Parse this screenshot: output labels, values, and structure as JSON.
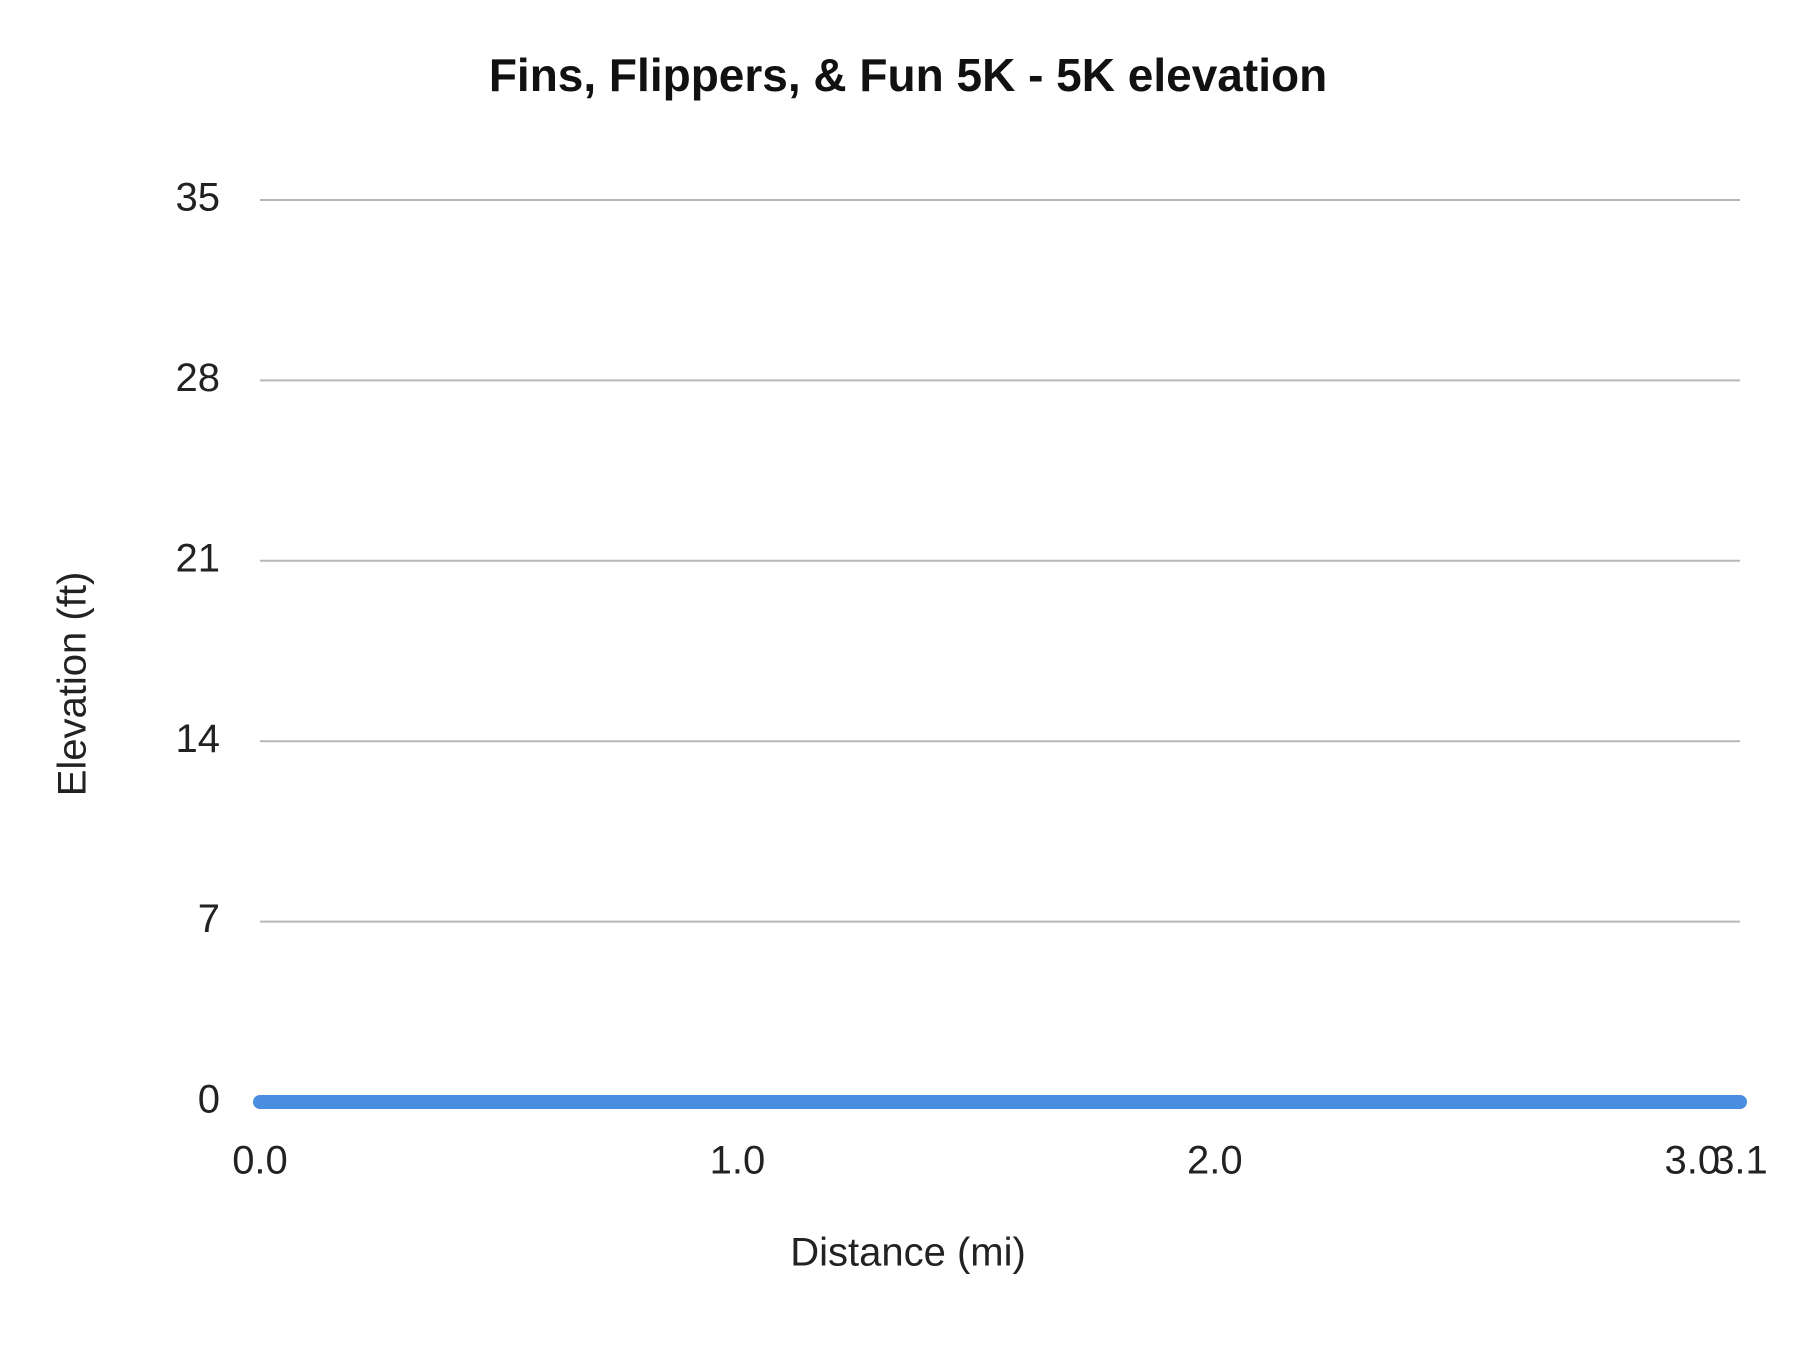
{
  "chart_data": {
    "type": "line",
    "title": "Fins, Flippers, & Fun 5K - 5K elevation",
    "x_label": "Distance (mi)",
    "y_label": "Elevation (ft)",
    "x": [
      0,
      0.5,
      1,
      1.5,
      2,
      2.5,
      3,
      3.1
    ],
    "series": [
      {
        "color": "#4a8fdf",
        "values": [
          0,
          0,
          0,
          0,
          0,
          0,
          0,
          0
        ]
      }
    ],
    "xlim": [
      0,
      3.1
    ],
    "xticks": [
      {
        "value": 0,
        "label": "0.0"
      },
      {
        "value": 1,
        "label": "1.0"
      },
      {
        "value": 2,
        "label": "2.0"
      },
      {
        "value": 3,
        "label": "3.0"
      },
      {
        "value": 3.1,
        "label": "3.1"
      }
    ],
    "ylim": [
      0,
      35
    ],
    "yticks": [
      0,
      7,
      14,
      21,
      28,
      35
    ],
    "grid": true
  }
}
